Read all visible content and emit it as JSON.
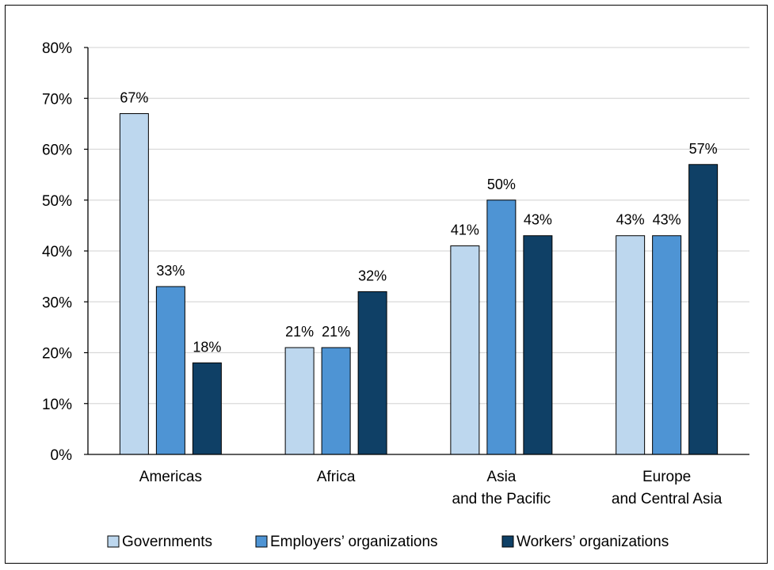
{
  "chart_data": {
    "type": "bar",
    "categories": [
      [
        "Americas"
      ],
      [
        "Africa"
      ],
      [
        "Asia",
        "and the Pacific"
      ],
      [
        "Europe",
        "and Central Asia"
      ]
    ],
    "series": [
      {
        "name": "Governments",
        "color": "#BDD7EE",
        "values": [
          67,
          21,
          41,
          43
        ],
        "labels": [
          "67%",
          "21%",
          "41%",
          "43%"
        ]
      },
      {
        "name": "Employers’ organizations",
        "color": "#4E94D4",
        "values": [
          33,
          21,
          50,
          43
        ],
        "labels": [
          "33%",
          "21%",
          "50%",
          "43%"
        ]
      },
      {
        "name": "Workers’ organizations",
        "color": "#0F4066",
        "values": [
          18,
          32,
          43,
          57
        ],
        "labels": [
          "18%",
          "32%",
          "43%",
          "57%"
        ]
      }
    ],
    "ylim": [
      0,
      80
    ],
    "yticks": [
      0,
      10,
      20,
      30,
      40,
      50,
      60,
      70,
      80
    ],
    "ytick_labels": [
      "0%",
      "10%",
      "20%",
      "30%",
      "40%",
      "50%",
      "60%",
      "70%",
      "80%"
    ],
    "grid": true,
    "legend_position": "bottom",
    "title": "",
    "xlabel": "",
    "ylabel": ""
  }
}
